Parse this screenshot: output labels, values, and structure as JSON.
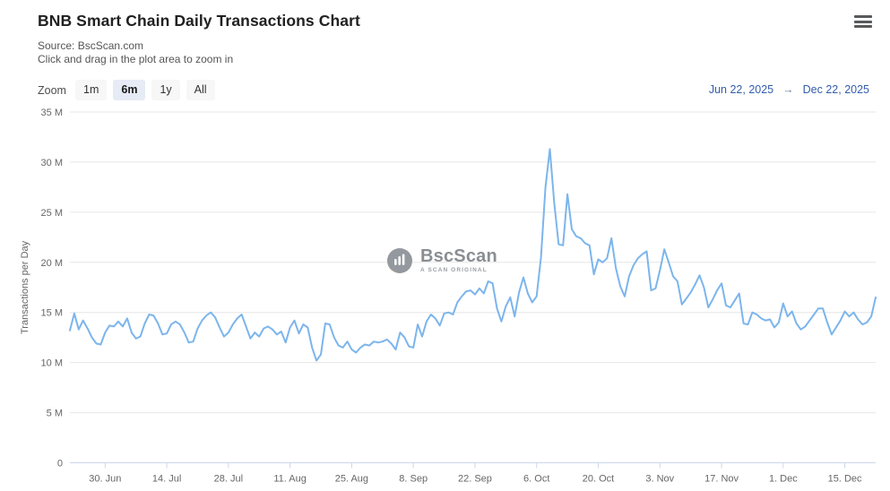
{
  "header": {
    "title": "BNB Smart Chain Daily Transactions Chart",
    "source_line": "Source: BscScan.com",
    "hint_line": "Click and drag in the plot area to zoom in"
  },
  "toolbar": {
    "zoom_label": "Zoom",
    "buttons": [
      {
        "label": "1m",
        "selected": false
      },
      {
        "label": "6m",
        "selected": true
      },
      {
        "label": "1y",
        "selected": false
      },
      {
        "label": "All",
        "selected": false
      }
    ],
    "range_from": "Jun 22, 2025",
    "range_separator": "→",
    "range_to": "Dec 22, 2025"
  },
  "watermark": {
    "name": "BscScan",
    "tagline": "A Scan Original"
  },
  "colors": {
    "line": "#7cb5ec",
    "grid": "#e6e6e6",
    "axis_line": "#ccd6eb",
    "axis_text": "#666666",
    "range_text": "#335cad",
    "button_bg": "#f7f7f7",
    "button_selected_bg": "#e6ebf5",
    "watermark_gray": "#8a8e93",
    "watermark_yellow": "#ecc356"
  },
  "chart_data": {
    "type": "line",
    "title": "BNB Smart Chain Daily Transactions Chart",
    "xlabel": "",
    "ylabel": "Transactions per Day",
    "unit": "millions of transactions",
    "ylim": [
      0,
      35
    ],
    "grid": "horizontal",
    "legend": false,
    "interval": "daily",
    "start_date": "Jun 22, 2025",
    "end_date": "Dec 22, 2025",
    "y_ticks": [
      "0",
      "5 M",
      "10 M",
      "15 M",
      "20 M",
      "25 M",
      "30 M",
      "35 M"
    ],
    "x_ticks": [
      {
        "label": "30. Jun",
        "day": 8
      },
      {
        "label": "14. Jul",
        "day": 22
      },
      {
        "label": "28. Jul",
        "day": 36
      },
      {
        "label": "11. Aug",
        "day": 50
      },
      {
        "label": "25. Aug",
        "day": 64
      },
      {
        "label": "8. Sep",
        "day": 78
      },
      {
        "label": "22. Sep",
        "day": 92
      },
      {
        "label": "6. Oct",
        "day": 106
      },
      {
        "label": "20. Oct",
        "day": 120
      },
      {
        "label": "3. Nov",
        "day": 134
      },
      {
        "label": "17. Nov",
        "day": 148
      },
      {
        "label": "1. Dec",
        "day": 162
      },
      {
        "label": "15. Dec",
        "day": 176
      }
    ],
    "series": [
      {
        "name": "Transactions per Day",
        "color": "#7cb5ec",
        "values": [
          13.2,
          14.9,
          13.3,
          14.2,
          13.4,
          12.5,
          11.9,
          11.8,
          13.0,
          13.7,
          13.6,
          14.1,
          13.6,
          14.4,
          13.0,
          12.4,
          12.6,
          13.9,
          14.8,
          14.7,
          13.9,
          12.8,
          12.9,
          13.8,
          14.1,
          13.8,
          13.0,
          12.0,
          12.1,
          13.4,
          14.2,
          14.7,
          15.0,
          14.5,
          13.5,
          12.6,
          13.0,
          13.8,
          14.4,
          14.8,
          13.6,
          12.4,
          13.0,
          12.6,
          13.4,
          13.6,
          13.3,
          12.8,
          13.1,
          12.0,
          13.5,
          14.2,
          12.9,
          13.8,
          13.5,
          11.5,
          10.2,
          10.8,
          13.9,
          13.8,
          12.5,
          11.7,
          11.5,
          12.1,
          11.3,
          11.0,
          11.5,
          11.8,
          11.7,
          12.1,
          12.0,
          12.1,
          12.3,
          11.9,
          11.3,
          13.0,
          12.5,
          11.6,
          11.5,
          13.8,
          12.6,
          14.1,
          14.8,
          14.4,
          13.7,
          14.9,
          15.0,
          14.8,
          16.0,
          16.6,
          17.1,
          17.2,
          16.8,
          17.4,
          16.9,
          18.1,
          17.9,
          15.4,
          14.1,
          15.6,
          16.5,
          14.6,
          17.0,
          18.5,
          16.9,
          16.0,
          16.6,
          20.5,
          27.5,
          31.3,
          25.9,
          21.8,
          21.7,
          26.8,
          23.3,
          22.6,
          22.4,
          21.9,
          21.7,
          18.8,
          20.3,
          20.0,
          20.4,
          22.4,
          19.4,
          17.6,
          16.6,
          18.6,
          19.7,
          20.4,
          20.8,
          21.1,
          17.2,
          17.4,
          19.2,
          21.3,
          20.0,
          18.6,
          18.1,
          15.8,
          16.4,
          17.0,
          17.8,
          18.7,
          17.5,
          15.5,
          16.3,
          17.2,
          17.9,
          15.7,
          15.5,
          16.2,
          16.9,
          13.9,
          13.8,
          15.0,
          14.8,
          14.4,
          14.2,
          14.3,
          13.5,
          14.0,
          15.9,
          14.6,
          15.1,
          13.9,
          13.3,
          13.6,
          14.2,
          14.8,
          15.4,
          15.4,
          14.0,
          12.8,
          13.5,
          14.2,
          15.1,
          14.6,
          15.0,
          14.3,
          13.8,
          14.0,
          14.6,
          16.5
        ]
      }
    ]
  }
}
